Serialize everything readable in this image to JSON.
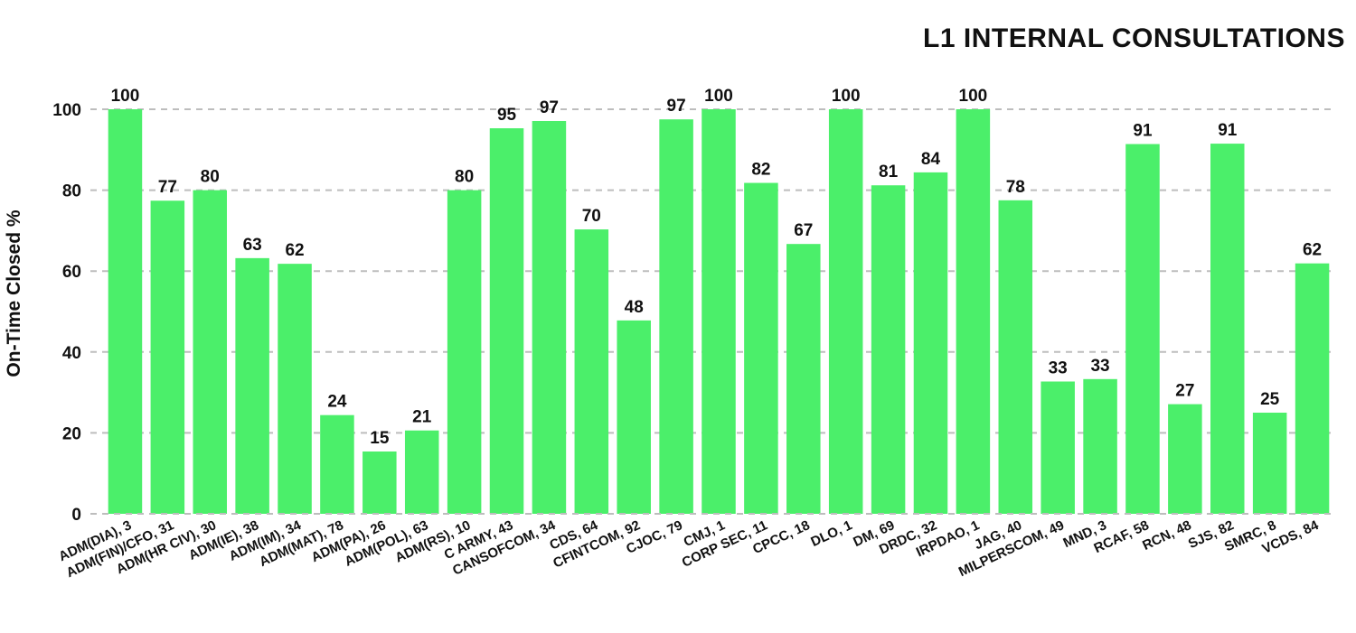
{
  "chart_data": {
    "type": "bar",
    "title": "L1 INTERNAL CONSULTATIONS",
    "xlabel": "",
    "ylabel": "On-Time Closed %",
    "ylim": [
      0,
      100
    ],
    "yticks": [
      0,
      20,
      40,
      60,
      80,
      100
    ],
    "grid": "horizontal dashed",
    "legend": "none",
    "bar_color": "#4bef6a",
    "categories": [
      "ADM(DIA), 3",
      "ADM(FIN)/CFO, 31",
      "ADM(HR CIV), 30",
      "ADM(IE), 38",
      "ADM(IM), 34",
      "ADM(MAT), 78",
      "ADM(PA), 26",
      "ADM(POL), 63",
      "ADM(RS), 10",
      "C ARMY, 43",
      "CANSOFCOM, 34",
      "CDS, 64",
      "CFINTCOM, 92",
      "CJOC, 79",
      "CMJ, 1",
      "CORP SEC, 11",
      "CPCC, 18",
      "DLO, 1",
      "DM, 69",
      "DRDC, 32",
      "IRPDAO, 1",
      "JAG, 40",
      "MILPERSCOM, 49",
      "MND, 3",
      "RCAF, 58",
      "RCN, 48",
      "SJS, 82",
      "SMRC, 8",
      "VCDS, 84"
    ],
    "values": [
      100,
      77.4,
      80,
      63.2,
      61.8,
      24.4,
      15.4,
      20.6,
      80,
      95.3,
      97.1,
      70.3,
      47.8,
      97.5,
      100,
      81.8,
      66.7,
      100,
      81.2,
      84.4,
      100,
      77.5,
      32.7,
      33.3,
      91.4,
      27.1,
      91.5,
      25,
      61.9
    ],
    "labels": [
      "100",
      "77",
      "80",
      "63",
      "62",
      "24",
      "15",
      "21",
      "80",
      "95",
      "97",
      "70",
      "48",
      "97",
      "100",
      "82",
      "67",
      "100",
      "81",
      "84",
      "100",
      "78",
      "33",
      "33",
      "91",
      "27",
      "91",
      "25",
      "62"
    ]
  }
}
